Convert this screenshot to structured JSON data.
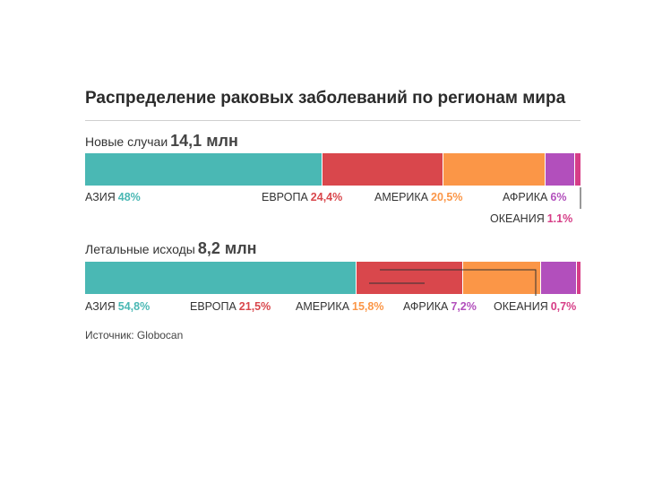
{
  "title": "Распределение раковых заболеваний по регионам мира",
  "source": "Источник: Globocan",
  "colors": {
    "asia": "#4ab8b4",
    "europe": "#d9474c",
    "america": "#fb9647",
    "africa": "#b24fbc",
    "oceania": "#d63d87"
  },
  "chart_data": [
    {
      "type": "bar",
      "title": "Новые случаи",
      "total": "14,1 млн",
      "categories": [
        "АЗИЯ",
        "ЕВРОПА",
        "АМЕРИКА",
        "АФРИКА",
        "ОКЕАНИЯ"
      ],
      "values": [
        48,
        24.4,
        20.5,
        6,
        1.1
      ],
      "value_labels": [
        "48%",
        "24,4%",
        "20,5%",
        "6%",
        "1.1%"
      ]
    },
    {
      "type": "bar",
      "title": "Летальные исходы",
      "total": "8,2 млн",
      "categories": [
        "АЗИЯ",
        "ЕВРОПА",
        "АМЕРИКА",
        "АФРИКА",
        "ОКЕАНИЯ"
      ],
      "values": [
        54.8,
        21.5,
        15.8,
        7.2,
        0.7
      ],
      "value_labels": [
        "54,8%",
        "21,5%",
        "15,8%",
        "7,2%",
        "0,7%"
      ]
    }
  ]
}
